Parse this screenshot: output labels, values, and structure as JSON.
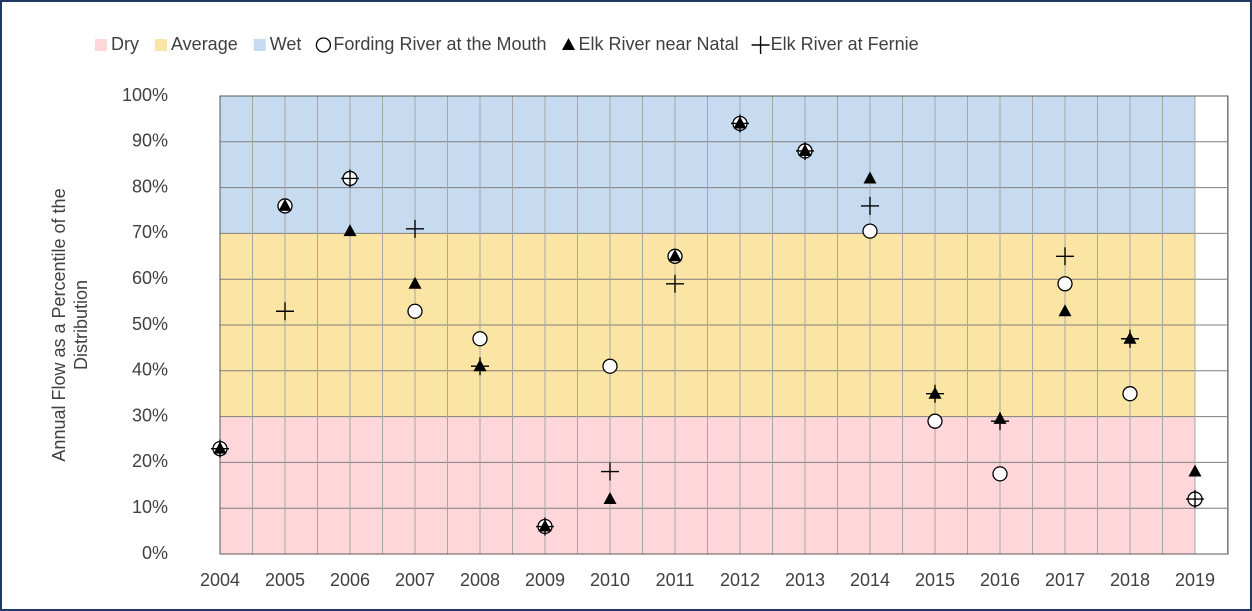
{
  "chart_data": {
    "type": "scatter",
    "ylabel": [
      "Annual Flow as a Percentile of the",
      "Distribution"
    ],
    "categories": [
      "2004",
      "2005",
      "2006",
      "2007",
      "2008",
      "2009",
      "2010",
      "2011",
      "2012",
      "2013",
      "2014",
      "2015",
      "2016",
      "2017",
      "2018",
      "2019"
    ],
    "bands": [
      {
        "name": "Dry",
        "color": "#ffd6d9",
        "range": [
          0,
          30
        ]
      },
      {
        "name": "Average",
        "color": "#fbe5a5",
        "range": [
          30,
          70
        ]
      },
      {
        "name": "Wet",
        "color": "#c6dbf0",
        "range": [
          70,
          100
        ]
      }
    ],
    "series": [
      {
        "name": "Fording River at the Mouth",
        "marker": "circle",
        "color": "#000000",
        "values": [
          23,
          76,
          82,
          53,
          47,
          6,
          41,
          65,
          94,
          88,
          70.5,
          29,
          17.5,
          59,
          35,
          12
        ]
      },
      {
        "name": "Elk River near Natal",
        "marker": "triangle",
        "color": "#000000",
        "values": [
          23,
          76,
          70.5,
          59,
          41,
          6,
          12,
          65,
          94,
          88,
          82,
          35,
          29.5,
          53,
          47,
          18
        ]
      },
      {
        "name": "Elk River at Fernie",
        "marker": "plus",
        "color": "#000000",
        "values": [
          23,
          53,
          82,
          71,
          41,
          6,
          18,
          59,
          94,
          88,
          76,
          35,
          29,
          65,
          47,
          12
        ]
      }
    ],
    "ylim": [
      0,
      100
    ],
    "yticks": [
      {
        "value": 0,
        "label": "0%"
      },
      {
        "value": 10,
        "label": "10%"
      },
      {
        "value": 20,
        "label": "20%"
      },
      {
        "value": 30,
        "label": "30%"
      },
      {
        "value": 40,
        "label": "40%"
      },
      {
        "value": 50,
        "label": "50%"
      },
      {
        "value": 60,
        "label": "60%"
      },
      {
        "value": 70,
        "label": "70%"
      },
      {
        "value": 80,
        "label": "80%"
      },
      {
        "value": 90,
        "label": "90%"
      },
      {
        "value": 100,
        "label": "100%"
      }
    ],
    "grid": true,
    "legend": "top"
  }
}
